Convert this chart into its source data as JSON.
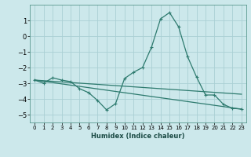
{
  "xlabel": "Humidex (Indice chaleur)",
  "ylabel": "",
  "background_color": "#cce8eb",
  "grid_color": "#aacfd4",
  "line_color": "#2d7a6e",
  "xlim": [
    -0.5,
    23.5
  ],
  "ylim": [
    -5.5,
    2.0
  ],
  "yticks": [
    1,
    0,
    -1,
    -2,
    -3,
    -4,
    -5
  ],
  "xticks": [
    0,
    1,
    2,
    3,
    4,
    5,
    6,
    7,
    8,
    9,
    10,
    11,
    12,
    13,
    14,
    15,
    16,
    17,
    18,
    19,
    20,
    21,
    22,
    23
  ],
  "line1_x": [
    0,
    1,
    2,
    3,
    4,
    5,
    6,
    7,
    8,
    9,
    10,
    11,
    12,
    13,
    14,
    15,
    16,
    17,
    18,
    19,
    20,
    21,
    22,
    23
  ],
  "line1_y": [
    -2.8,
    -3.0,
    -2.65,
    -2.8,
    -2.9,
    -3.35,
    -3.6,
    -4.1,
    -4.7,
    -4.3,
    -2.7,
    -2.3,
    -2.0,
    -0.7,
    1.1,
    1.5,
    0.6,
    -1.3,
    -2.6,
    -3.75,
    -3.75,
    -4.35,
    -4.6,
    -4.65
  ],
  "line2_x": [
    0,
    23
  ],
  "line2_y": [
    -2.8,
    -3.7
  ],
  "line3_x": [
    0,
    23
  ],
  "line3_y": [
    -2.8,
    -4.65
  ]
}
